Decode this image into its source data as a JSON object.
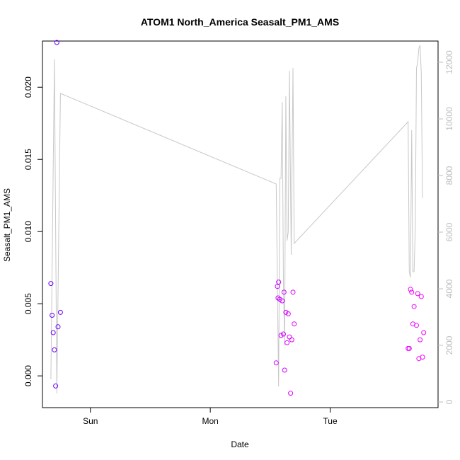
{
  "chart_data": {
    "type": "scatter",
    "title": "ATOM1 North_America Seasalt_PM1_AMS",
    "xlabel": "Date",
    "ylabel": "Seasalt_PM1_AMS",
    "x_ticks": [
      "Sun",
      "Mon",
      "Tue"
    ],
    "y_ticks": [
      "0.000",
      "0.005",
      "0.010",
      "0.015",
      "0.020"
    ],
    "y_right_ticks": [
      "0",
      "2000",
      "4000",
      "6000",
      "8000",
      "10000",
      "12000"
    ],
    "ylim": [
      -0.0022,
      0.0232
    ],
    "y_right_lim": [
      -200,
      12750
    ],
    "xlim": [
      -0.4,
      2.9
    ],
    "colors": {
      "line": "#c8c8c8",
      "axis": "#000000",
      "right_axis": "#bdbdbd"
    },
    "series": [
      {
        "kind": "points",
        "points": [
          {
            "x": -0.33,
            "y": 0.0064,
            "c": "#6a00ff"
          },
          {
            "x": -0.32,
            "y": 0.0042,
            "c": "#6a00ff"
          },
          {
            "x": -0.31,
            "y": 0.003,
            "c": "#6a00ff"
          },
          {
            "x": -0.3,
            "y": 0.0018,
            "c": "#6a00ff"
          },
          {
            "x": -0.29,
            "y": -0.0007,
            "c": "#6a00ff"
          },
          {
            "x": -0.28,
            "y": 0.0231,
            "c": "#6a00ff"
          },
          {
            "x": -0.27,
            "y": 0.0034,
            "c": "#6a00ff"
          },
          {
            "x": -0.25,
            "y": 0.0044,
            "c": "#6a00ff"
          },
          {
            "x": 1.55,
            "y": 0.0009,
            "c": "#d000ff"
          },
          {
            "x": 1.56,
            "y": 0.0062,
            "c": "#c200ff"
          },
          {
            "x": 1.565,
            "y": 0.0054,
            "c": "#c200ff"
          },
          {
            "x": 1.57,
            "y": 0.0065,
            "c": "#c200ff"
          },
          {
            "x": 1.58,
            "y": 0.0053,
            "c": "#c800ff"
          },
          {
            "x": 1.59,
            "y": 0.0028,
            "c": "#d000ff"
          },
          {
            "x": 1.6,
            "y": 0.0052,
            "c": "#d000ff"
          },
          {
            "x": 1.61,
            "y": 0.0029,
            "c": "#d000ff"
          },
          {
            "x": 1.615,
            "y": 0.0058,
            "c": "#d000ff"
          },
          {
            "x": 1.62,
            "y": 0.0004,
            "c": "#d400ff"
          },
          {
            "x": 1.63,
            "y": 0.0044,
            "c": "#d400ff"
          },
          {
            "x": 1.64,
            "y": 0.0023,
            "c": "#d800ff"
          },
          {
            "x": 1.65,
            "y": 0.0043,
            "c": "#d800ff"
          },
          {
            "x": 1.66,
            "y": 0.0027,
            "c": "#dc00ff"
          },
          {
            "x": 1.67,
            "y": -0.0012,
            "c": "#dc00ff"
          },
          {
            "x": 1.68,
            "y": 0.0025,
            "c": "#e000ff"
          },
          {
            "x": 1.69,
            "y": 0.0058,
            "c": "#e000ff"
          },
          {
            "x": 1.7,
            "y": 0.0036,
            "c": "#e400ff"
          },
          {
            "x": 2.65,
            "y": 0.0019,
            "c": "#e800ff"
          },
          {
            "x": 2.66,
            "y": 0.0019,
            "c": "#e800ff"
          },
          {
            "x": 2.67,
            "y": 0.006,
            "c": "#ec00ff"
          },
          {
            "x": 2.68,
            "y": 0.0058,
            "c": "#ec00ff"
          },
          {
            "x": 2.69,
            "y": 0.0036,
            "c": "#f000ff"
          },
          {
            "x": 2.7,
            "y": 0.0048,
            "c": "#f000ff"
          },
          {
            "x": 2.72,
            "y": 0.0035,
            "c": "#f000ff"
          },
          {
            "x": 2.73,
            "y": 0.0057,
            "c": "#f200ff"
          },
          {
            "x": 2.74,
            "y": 0.0012,
            "c": "#f400ff"
          },
          {
            "x": 2.75,
            "y": 0.0025,
            "c": "#f400ff"
          },
          {
            "x": 2.76,
            "y": 0.0055,
            "c": "#f600ff"
          },
          {
            "x": 2.77,
            "y": 0.0013,
            "c": "#f800ff"
          },
          {
            "x": 2.78,
            "y": 0.003,
            "c": "#f800ff"
          }
        ]
      },
      {
        "kind": "line",
        "axis": "right",
        "points": [
          {
            "x": -0.33,
            "y": 800
          },
          {
            "x": -0.3,
            "y": 12100
          },
          {
            "x": -0.28,
            "y": 300
          },
          {
            "x": -0.25,
            "y": 10900
          },
          {
            "x": 1.55,
            "y": 7700
          },
          {
            "x": 1.57,
            "y": 550
          },
          {
            "x": 1.58,
            "y": 7900
          },
          {
            "x": 1.59,
            "y": 7900
          },
          {
            "x": 1.6,
            "y": 10600
          },
          {
            "x": 1.61,
            "y": 4200
          },
          {
            "x": 1.62,
            "y": 2000
          },
          {
            "x": 1.63,
            "y": 10800
          },
          {
            "x": 1.64,
            "y": 5700
          },
          {
            "x": 1.65,
            "y": 6000
          },
          {
            "x": 1.66,
            "y": 11700
          },
          {
            "x": 1.675,
            "y": 5200
          },
          {
            "x": 1.69,
            "y": 11800
          },
          {
            "x": 1.7,
            "y": 5600
          },
          {
            "x": 2.65,
            "y": 9900
          },
          {
            "x": 2.66,
            "y": 4600
          },
          {
            "x": 2.67,
            "y": 4400
          },
          {
            "x": 2.68,
            "y": 9600
          },
          {
            "x": 2.69,
            "y": 4600
          },
          {
            "x": 2.7,
            "y": 4600
          },
          {
            "x": 2.71,
            "y": 6100
          },
          {
            "x": 2.72,
            "y": 11800
          },
          {
            "x": 2.73,
            "y": 12000
          },
          {
            "x": 2.74,
            "y": 12500
          },
          {
            "x": 2.75,
            "y": 12600
          },
          {
            "x": 2.76,
            "y": 11600
          },
          {
            "x": 2.77,
            "y": 7200
          }
        ]
      }
    ]
  }
}
